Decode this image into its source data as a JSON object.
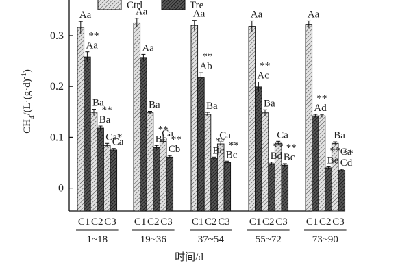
{
  "chart_data": {
    "type": "bar",
    "ylabel": "CH4/(L·(g·d)-1)",
    "ylabel_parts": {
      "base": "CH",
      "sub": "4",
      "mid": "/(L·(g·d)",
      "sup": "-1",
      "tail": ")"
    },
    "xlabel": "时间/d",
    "ylim": [
      -0.045,
      0.37
    ],
    "yticks": [
      {
        "value": 0,
        "label": "0"
      },
      {
        "value": 0.1,
        "label": "0.1"
      },
      {
        "value": 0.2,
        "label": "0.2"
      },
      {
        "value": 0.3,
        "label": "0.3"
      }
    ],
    "legend": [
      {
        "name": "Ctrl",
        "pattern": "light-hatch"
      },
      {
        "name": "Tre",
        "pattern": "dark-hatch"
      }
    ],
    "legend_position": "top",
    "groups": [
      {
        "label": "1~18",
        "sub_labels": [
          "C1",
          "C2",
          "C3"
        ],
        "bars": [
          {
            "series": "Ctrl",
            "sub": "C1",
            "value": 0.316,
            "err": 0.012
          },
          {
            "series": "Tre",
            "sub": "C1",
            "value": 0.258,
            "err": 0.01
          },
          {
            "series": "Ctrl",
            "sub": "C2",
            "value": 0.149,
            "err": 0.006
          },
          {
            "series": "Tre",
            "sub": "C2",
            "value": 0.118,
            "err": 0.004
          },
          {
            "series": "Ctrl",
            "sub": "C3",
            "value": 0.084,
            "err": 0.004
          },
          {
            "series": "Tre",
            "sub": "C3",
            "value": 0.075,
            "err": 0.003
          }
        ],
        "annotations": [
          {
            "bar": 0,
            "text": "Aa"
          },
          {
            "bar": 1,
            "text": "Aa",
            "sig": "**"
          },
          {
            "bar": 2,
            "text": "Ba"
          },
          {
            "bar": 3,
            "text": "Ba",
            "sig": "**"
          },
          {
            "bar": 4,
            "text": "Ca*"
          },
          {
            "bar": 5,
            "text": "Ca"
          }
        ]
      },
      {
        "label": "19~36",
        "sub_labels": [
          "C1",
          "C2",
          "C3"
        ],
        "bars": [
          {
            "series": "Ctrl",
            "sub": "C1",
            "value": 0.325,
            "err": 0.009
          },
          {
            "series": "Tre",
            "sub": "C1",
            "value": 0.257,
            "err": 0.006
          },
          {
            "series": "Ctrl",
            "sub": "C2",
            "value": 0.148,
            "err": 0.003
          },
          {
            "series": "Tre",
            "sub": "C2",
            "value": 0.08,
            "err": 0.004
          },
          {
            "series": "Ctrl",
            "sub": "C3",
            "value": 0.092,
            "err": 0.003
          },
          {
            "series": "Tre",
            "sub": "C3",
            "value": 0.061,
            "err": 0.003
          }
        ],
        "annotations": [
          {
            "bar": 0,
            "text": "Aa"
          },
          {
            "bar": 1,
            "text": "Aa"
          },
          {
            "bar": 2,
            "text": "Ba"
          },
          {
            "bar": 3,
            "text": "Bb",
            "sig": "**"
          },
          {
            "bar": 4,
            "text": "Ca"
          },
          {
            "bar": 5,
            "text": "Cb",
            "sig": "**"
          }
        ]
      },
      {
        "label": "37~54",
        "sub_labels": [
          "C1",
          "C2",
          "C3"
        ],
        "bars": [
          {
            "series": "Ctrl",
            "sub": "C1",
            "value": 0.32,
            "err": 0.01
          },
          {
            "series": "Tre",
            "sub": "C1",
            "value": 0.217,
            "err": 0.01
          },
          {
            "series": "Ctrl",
            "sub": "C2",
            "value": 0.145,
            "err": 0.004
          },
          {
            "series": "Tre",
            "sub": "C2",
            "value": 0.058,
            "err": 0.003
          },
          {
            "series": "Ctrl",
            "sub": "C3",
            "value": 0.087,
            "err": 0.004
          },
          {
            "series": "Tre",
            "sub": "C3",
            "value": 0.05,
            "err": 0.003
          }
        ],
        "annotations": [
          {
            "bar": 0,
            "text": "Aa"
          },
          {
            "bar": 1,
            "text": "Ab",
            "sig": "**"
          },
          {
            "bar": 2,
            "text": "Ba"
          },
          {
            "bar": 3,
            "text": "Bc",
            "sig": "**"
          },
          {
            "bar": 4,
            "text": "Ca"
          },
          {
            "bar": 5,
            "text": "Bc",
            "sig": "**"
          }
        ]
      },
      {
        "label": "55~72",
        "sub_labels": [
          "C1",
          "C2",
          "C3"
        ],
        "bars": [
          {
            "series": "Ctrl",
            "sub": "C1",
            "value": 0.318,
            "err": 0.011
          },
          {
            "series": "Tre",
            "sub": "C1",
            "value": 0.199,
            "err": 0.01
          },
          {
            "series": "Ctrl",
            "sub": "C2",
            "value": 0.148,
            "err": 0.006
          },
          {
            "series": "Tre",
            "sub": "C2",
            "value": 0.048,
            "err": 0.003
          },
          {
            "series": "Ctrl",
            "sub": "C3",
            "value": 0.088,
            "err": 0.004
          },
          {
            "series": "Tre",
            "sub": "C3",
            "value": 0.045,
            "err": 0.003
          }
        ],
        "annotations": [
          {
            "bar": 0,
            "text": "Aa"
          },
          {
            "bar": 1,
            "text": "Ac",
            "sig": "**"
          },
          {
            "bar": 2,
            "text": "Ba"
          },
          {
            "bar": 3,
            "text": "Bd",
            "sig": "**"
          },
          {
            "bar": 4,
            "text": "Ca"
          },
          {
            "bar": 5,
            "text": "Bc",
            "sig": "**"
          }
        ]
      },
      {
        "label": "73~90",
        "sub_labels": [
          "C1",
          "C2",
          "C3"
        ],
        "bars": [
          {
            "series": "Ctrl",
            "sub": "C1",
            "value": 0.322,
            "err": 0.007
          },
          {
            "series": "Tre",
            "sub": "C1",
            "value": 0.142,
            "err": 0.003
          },
          {
            "series": "Ctrl",
            "sub": "C2",
            "value": 0.142,
            "err": 0.003
          },
          {
            "series": "Tre",
            "sub": "C2",
            "value": 0.04,
            "err": 0.002
          },
          {
            "series": "Ctrl",
            "sub": "C3",
            "value": 0.088,
            "err": 0.003
          },
          {
            "series": "Tre",
            "sub": "C3",
            "value": 0.035,
            "err": 0.002
          }
        ],
        "annotations": [
          {
            "bar": 0,
            "text": "Aa"
          },
          {
            "bar": 1,
            "text": "Ad",
            "sig": "**"
          },
          {
            "bar": 3,
            "text": "Be",
            "sig": "**"
          },
          {
            "bar": 4,
            "text": "Ba"
          },
          {
            "bar": 5,
            "text": "Cd",
            "sig": "**"
          },
          {
            "bar": 5,
            "text": "Ca"
          }
        ]
      }
    ]
  }
}
